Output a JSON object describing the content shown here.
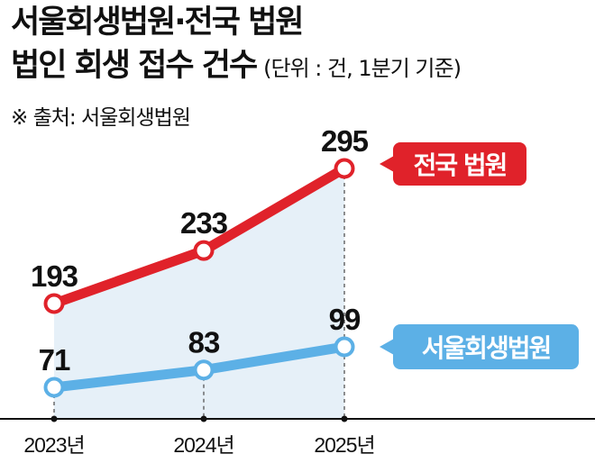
{
  "title": {
    "line1": "서울회생법원·전국 법원",
    "line2": "법인 회생 접수 건수",
    "unit": "(단위 : 건, 1분기 기준)"
  },
  "source": "※ 출처: 서울회생법원",
  "colors": {
    "national": "#e0222a",
    "seoul": "#5cb0e6",
    "fill": "#e6f0f8"
  },
  "chart_data": {
    "type": "line",
    "categories": [
      "2023년",
      "2024년",
      "2025년"
    ],
    "series": [
      {
        "name": "전국 법원",
        "values": [
          193,
          233,
          295
        ]
      },
      {
        "name": "서울회생법원",
        "values": [
          71,
          83,
          99
        ]
      }
    ],
    "legend": "inline-right",
    "grid": false
  }
}
